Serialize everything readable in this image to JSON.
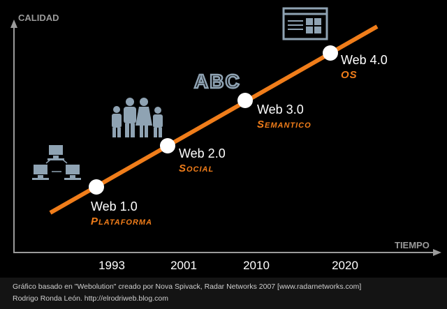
{
  "axes": {
    "y_label": "CALIDAD",
    "x_label": "TIEMPO"
  },
  "years": [
    "1993",
    "2001",
    "2010",
    "2020"
  ],
  "milestones": [
    {
      "label": "Web 1.0",
      "subtitle": "Plataforma"
    },
    {
      "label": "Web 2.0",
      "subtitle": "Social"
    },
    {
      "label": "Web 3.0",
      "subtitle": "Semantico"
    },
    {
      "label": "Web 4.0",
      "subtitle": "OS"
    }
  ],
  "icon_text": "ABC",
  "caption": [
    "Gráfico basado en \"Webolution\" creado por Nova Spivack, Radar Networks 2007 [www.radarnetworks.com]",
    "Rodrigo Ronda León. http://elrodriweb.blog.com"
  ]
}
